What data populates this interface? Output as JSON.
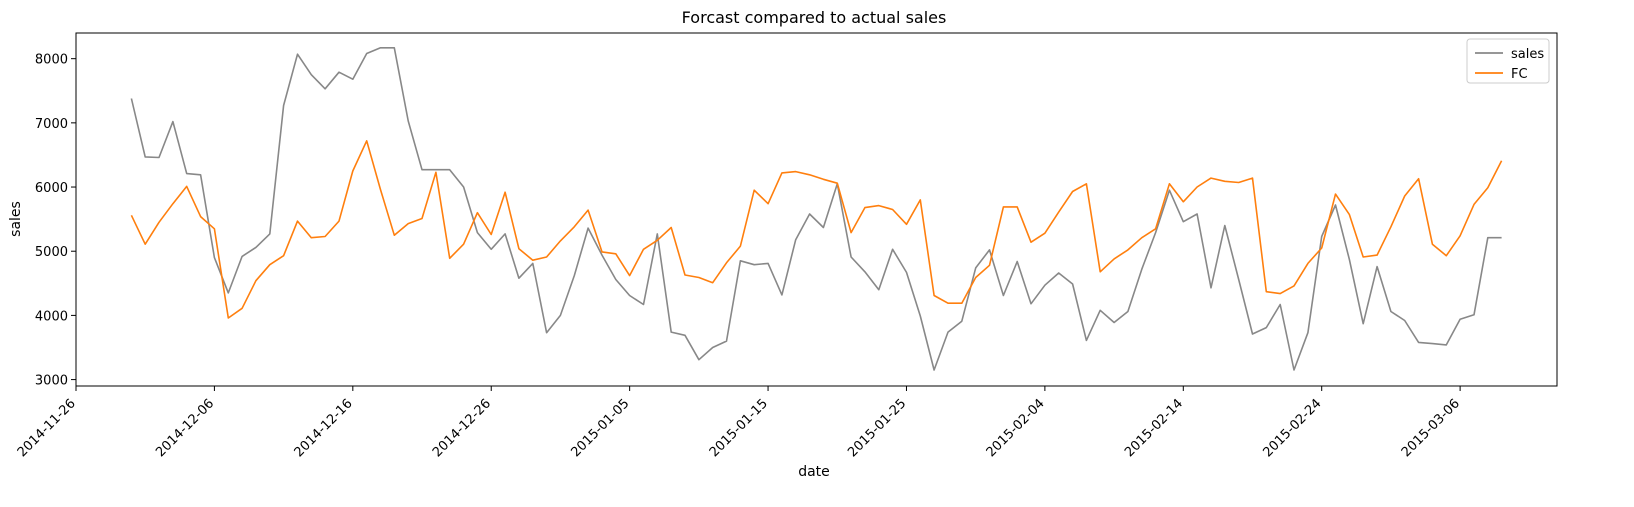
{
  "chart_data": {
    "type": "line",
    "title": "Forcast compared to actual sales",
    "xlabel": "date",
    "ylabel": "sales",
    "x_start": "2014-11-30",
    "x_end": "2015-03-09",
    "xlim": [
      "2014-11-26",
      "2015-03-13"
    ],
    "ylim": [
      2900,
      8400
    ],
    "x_ticks": [
      "2014-11-26",
      "2014-12-06",
      "2014-12-16",
      "2014-12-26",
      "2015-01-05",
      "2015-01-15",
      "2015-01-25",
      "2015-02-04",
      "2015-02-14",
      "2015-02-24",
      "2015-03-06"
    ],
    "y_ticks": [
      3000,
      4000,
      5000,
      6000,
      7000,
      8000
    ],
    "grid": false,
    "legend": "top-right",
    "series": [
      {
        "name": "sales",
        "color": "#888888",
        "values": [
          7380,
          6470,
          6460,
          7020,
          6210,
          6190,
          4900,
          4350,
          4920,
          5060,
          5270,
          7270,
          8070,
          7750,
          7530,
          7790,
          7680,
          8080,
          8170,
          8170,
          7030,
          6270,
          6270,
          6270,
          6000,
          5290,
          5030,
          5270,
          4580,
          4810,
          3730,
          4000,
          4620,
          5360,
          4940,
          4560,
          4310,
          4170,
          5270,
          3740,
          3690,
          3310,
          3500,
          3600,
          4850,
          4790,
          4810,
          4320,
          5180,
          5580,
          5370,
          6050,
          4910,
          4680,
          4400,
          5030,
          4670,
          3990,
          3150,
          3740,
          3910,
          4740,
          5020,
          4310,
          4840,
          4180,
          4470,
          4660,
          4490,
          3610,
          4080,
          3890,
          4060,
          4720,
          5290,
          5950,
          5460,
          5580,
          4430,
          5400,
          4560,
          3710,
          3810,
          4170,
          3150,
          3730,
          5230,
          5720,
          4870,
          3870,
          4760,
          4060,
          3920,
          3580,
          3560,
          3540,
          3940,
          4010,
          5210,
          5210
        ]
      },
      {
        "name": "FC",
        "color": "#ff7f0e",
        "values": [
          5560,
          5110,
          5450,
          5740,
          6010,
          5540,
          5350,
          3960,
          4110,
          4540,
          4790,
          4930,
          5470,
          5210,
          5230,
          5470,
          6250,
          6720,
          5960,
          5250,
          5430,
          5510,
          6230,
          4890,
          5110,
          5600,
          5260,
          5920,
          5040,
          4860,
          4910,
          5160,
          5380,
          5640,
          4990,
          4960,
          4620,
          5030,
          5170,
          5370,
          4630,
          4590,
          4510,
          4820,
          5080,
          5950,
          5740,
          6220,
          6240,
          6190,
          6120,
          6060,
          5290,
          5680,
          5710,
          5650,
          5420,
          5800,
          4310,
          4190,
          4190,
          4590,
          4780,
          5690,
          5690,
          5140,
          5280,
          5610,
          5930,
          6050,
          4680,
          4880,
          5020,
          5210,
          5350,
          6050,
          5770,
          6000,
          6140,
          6090,
          6070,
          6140,
          4370,
          4340,
          4460,
          4810,
          5050,
          5890,
          5570,
          4910,
          4940,
          5380,
          5860,
          6130,
          5110,
          4930,
          5240,
          5730,
          5990,
          6410
        ]
      }
    ]
  }
}
